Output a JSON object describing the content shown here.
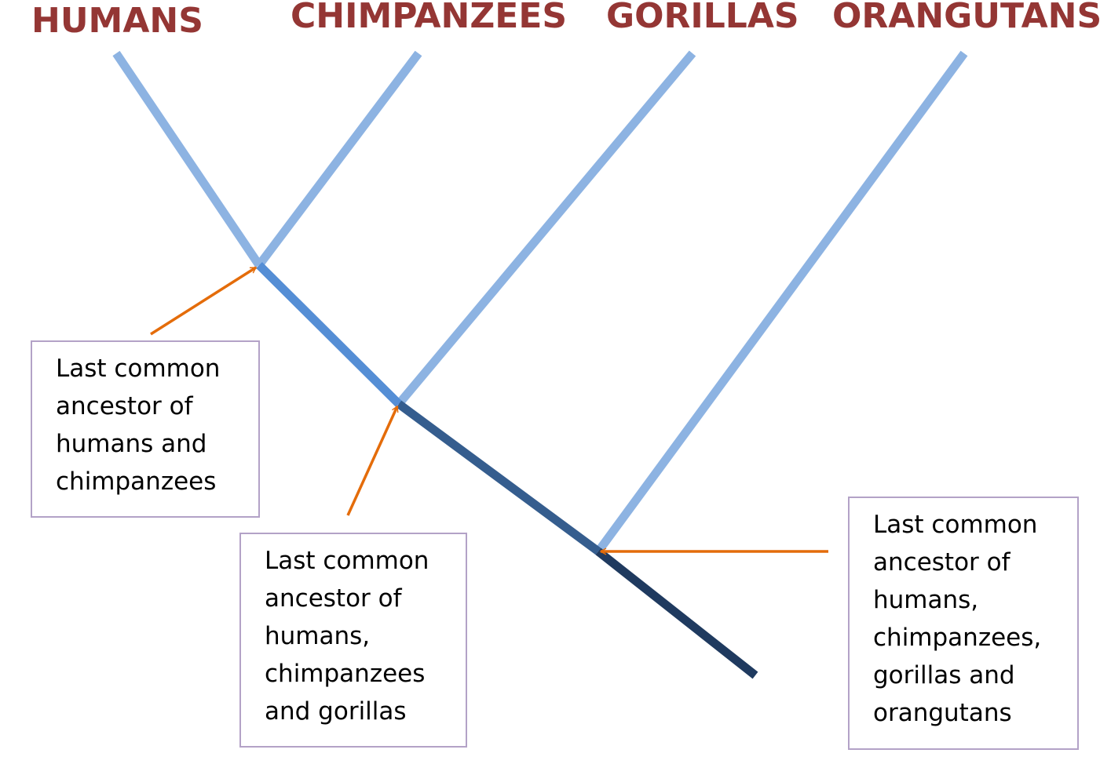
{
  "species": [
    {
      "name": "HUMANS"
    },
    {
      "name": "CHIMPANZEES"
    },
    {
      "name": "GORILLAS"
    },
    {
      "name": "ORANGUTANS"
    }
  ],
  "callouts": [
    {
      "lines": [
        "Last common",
        "ancestor of",
        "humans and",
        "chimpanzees"
      ]
    },
    {
      "lines": [
        "Last common",
        "ancestor of",
        "humans,",
        "chimpanzees",
        "and gorillas"
      ]
    },
    {
      "lines": [
        "Last common",
        "ancestor of",
        "humans,",
        "chimpanzees,",
        "gorillas and",
        "orangutans"
      ]
    }
  ],
  "colors": {
    "species_label": "#943634",
    "tip_branch": "#8db3e2",
    "internal_branch_1": "#558ed5",
    "internal_branch_2": "#355d8e",
    "root_branch": "#1f3a5f",
    "arrow": "#e46c0a",
    "callout_border": "#b3a2c7"
  }
}
